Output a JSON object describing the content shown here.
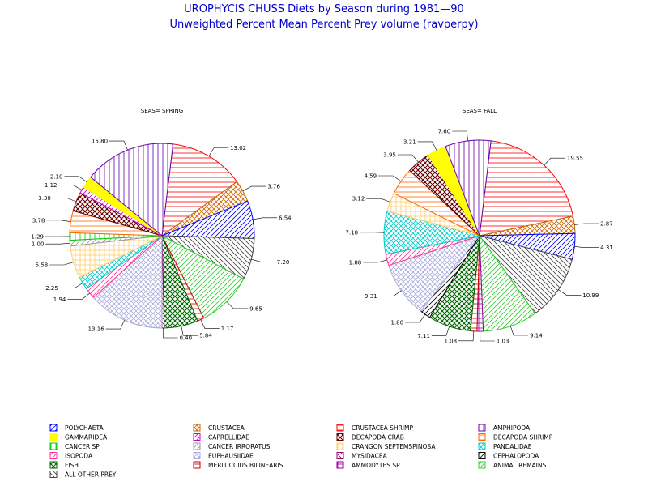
{
  "title": "UROPHYCIS CHUSS Diets by Season during 1981—90",
  "subtitle": "Unweighted Percent Mean Percent Prey  volume (ravperpy)",
  "categories": [
    {
      "name": "POLYCHAETA",
      "color": "#0000ff",
      "pattern": "hl"
    },
    {
      "name": "CRUSTACEA",
      "color": "#cc6600",
      "pattern": "x"
    },
    {
      "name": "CRUSTACEA SHRIMP",
      "color": "#ff0000",
      "pattern": "h"
    },
    {
      "name": "AMPHIPODA",
      "color": "#6600aa",
      "pattern": "v"
    },
    {
      "name": "GAMMARIDEA",
      "color": "#ffff00",
      "pattern": "solid"
    },
    {
      "name": "CAPRELLIDAE",
      "color": "#cc00cc",
      "pattern": "hl"
    },
    {
      "name": "DECAPODA CRAB",
      "color": "#660000",
      "pattern": "xd"
    },
    {
      "name": "DECAPODA SHRIMP",
      "color": "#ff6600",
      "pattern": "h"
    },
    {
      "name": "CANCER SP",
      "color": "#00cc00",
      "pattern": "v"
    },
    {
      "name": "CANCER IRRORATUS",
      "color": "#999999",
      "pattern": "hl"
    },
    {
      "name": "CRANGON SEPTEMSPINOSA",
      "color": "#ffcc66",
      "pattern": "grid"
    },
    {
      "name": "PANDALIDAE",
      "color": "#00cccc",
      "pattern": "x"
    },
    {
      "name": "ISOPODA",
      "color": "#ff3399",
      "pattern": "hl"
    },
    {
      "name": "EUPHAUSIIDAE",
      "color": "#aaaadd",
      "pattern": "x"
    },
    {
      "name": "MYSIDACEA",
      "color": "#990066",
      "pattern": "hr"
    },
    {
      "name": "CEPHALOPODA",
      "color": "#000000",
      "pattern": "hl"
    },
    {
      "name": "FISH",
      "color": "#006600",
      "pattern": "xd"
    },
    {
      "name": "MERLUCCIUS BILINEARIS",
      "color": "#cc0000",
      "pattern": "h"
    },
    {
      "name": "AMMODYTES SP",
      "color": "#990099",
      "pattern": "grid"
    },
    {
      "name": "ANIMAL REMAINS",
      "color": "#33cc33",
      "pattern": "hl"
    },
    {
      "name": "ALL OTHER PREY",
      "color": "#444444",
      "pattern": "hr"
    }
  ],
  "chart_data": [
    {
      "type": "pie",
      "title": "SEAS= SPRING",
      "slices": [
        {
          "category": "CRUSTACEA SHRIMP",
          "value": 13.02,
          "label": "13.02"
        },
        {
          "category": "CRUSTACEA",
          "value": 3.76,
          "label": "3.76"
        },
        {
          "category": "POLYCHAETA",
          "value": 6.54,
          "label": "6.54"
        },
        {
          "category": "ALL OTHER PREY",
          "value": 7.2,
          "label": "7.20"
        },
        {
          "category": "ANIMAL REMAINS",
          "value": 9.65,
          "label": "9.65"
        },
        {
          "category": "MERLUCCIUS BILINEARIS",
          "value": 1.17,
          "label": "1.17"
        },
        {
          "category": "FISH",
          "value": 5.84,
          "label": "5.84"
        },
        {
          "category": "MYSIDACEA",
          "value": 0.4,
          "label": "0.40"
        },
        {
          "category": "EUPHAUSIIDAE",
          "value": 13.16,
          "label": "13.16"
        },
        {
          "category": "ISOPODA",
          "value": 1.94,
          "label": "1.94"
        },
        {
          "category": "PANDALIDAE",
          "value": 2.25,
          "label": "2.25"
        },
        {
          "category": "CRANGON SEPTEMSPINOSA",
          "value": 5.58,
          "label": "5.58"
        },
        {
          "category": "CANCER IRRORATUS",
          "value": 1.0,
          "label": "1.00"
        },
        {
          "category": "CANCER SP",
          "value": 1.29,
          "label": "1.29"
        },
        {
          "category": "DECAPODA SHRIMP",
          "value": 3.78,
          "label": "3.78"
        },
        {
          "category": "DECAPODA CRAB",
          "value": 3.3,
          "label": "3.30"
        },
        {
          "category": "CAPRELLIDAE",
          "value": 1.12,
          "label": "1.12"
        },
        {
          "category": "GAMMARIDEA",
          "value": 2.1,
          "label": "2.10"
        },
        {
          "category": "AMPHIPODA",
          "value": 15.8,
          "label": "15.80"
        }
      ]
    },
    {
      "type": "pie",
      "title": "SEAS= FALL",
      "slices": [
        {
          "category": "CRUSTACEA SHRIMP",
          "value": 19.55,
          "label": "19.55"
        },
        {
          "category": "CRUSTACEA",
          "value": 2.87,
          "label": "2.87"
        },
        {
          "category": "POLYCHAETA",
          "value": 4.31,
          "label": "4.31"
        },
        {
          "category": "ALL OTHER PREY",
          "value": 10.99,
          "label": "10.99"
        },
        {
          "category": "ANIMAL REMAINS",
          "value": 9.14,
          "label": "9.14"
        },
        {
          "category": "AMMODYTES SP",
          "value": 1.03,
          "label": "1.03"
        },
        {
          "category": "MERLUCCIUS BILINEARIS",
          "value": 1.08,
          "label": "1.08"
        },
        {
          "category": "FISH",
          "value": 7.11,
          "label": "7.11"
        },
        {
          "category": "CEPHALOPODA",
          "value": 1.8,
          "label": "1.80"
        },
        {
          "category": "EUPHAUSIIDAE",
          "value": 9.31,
          "label": "9.31"
        },
        {
          "category": "ISOPODA",
          "value": 1.88,
          "label": "1.88"
        },
        {
          "category": "PANDALIDAE",
          "value": 7.18,
          "label": "7.18"
        },
        {
          "category": "CRANGON SEPTEMSPINOSA",
          "value": 3.12,
          "label": "3.12"
        },
        {
          "category": "DECAPODA SHRIMP",
          "value": 4.59,
          "label": "4.59"
        },
        {
          "category": "DECAPODA CRAB",
          "value": 3.95,
          "label": "3.95"
        },
        {
          "category": "GAMMARIDEA",
          "value": 3.21,
          "label": "3.21"
        },
        {
          "category": "AMPHIPODA",
          "value": 7.6,
          "label": "7.60"
        }
      ]
    }
  ]
}
